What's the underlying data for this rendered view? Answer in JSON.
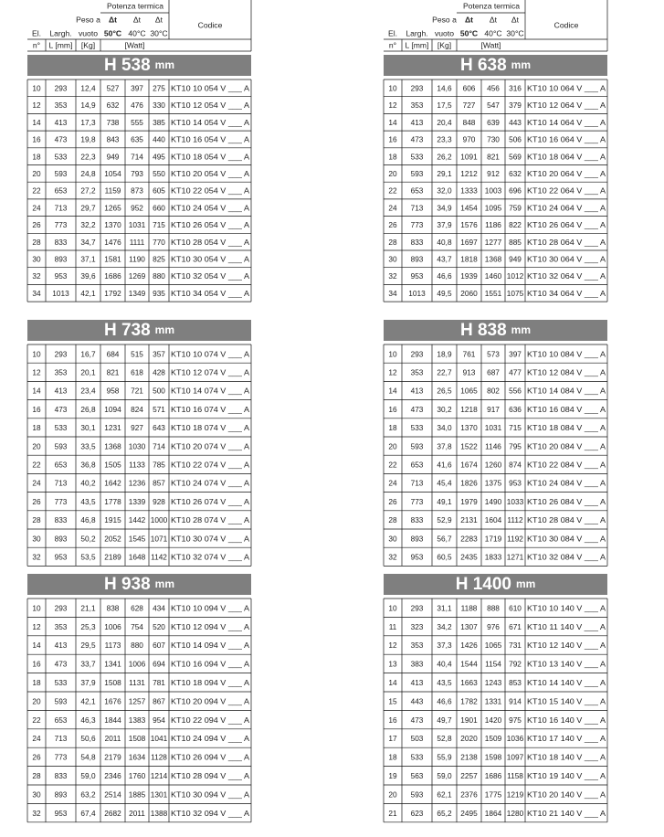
{
  "header": {
    "group": "Potenza termica",
    "columns": [
      [
        "El."
      ],
      [
        "Largh."
      ],
      [
        "Peso a",
        "vuoto"
      ],
      [
        "Δt",
        "50°C"
      ],
      [
        "Δt",
        "40°C"
      ],
      [
        "Δt",
        "30°C"
      ],
      [
        "Codice"
      ]
    ],
    "units": [
      "n°",
      "L [mm]",
      "[Kg]",
      "[Watt]"
    ]
  },
  "sections": [
    {
      "title": "H 538",
      "unit": "mm",
      "rows": [
        [
          "10",
          "293",
          "12,4",
          "527",
          "397",
          "275",
          "KT10 10 054 V ___ A"
        ],
        [
          "12",
          "353",
          "14,9",
          "632",
          "476",
          "330",
          "KT10 12 054 V ___ A"
        ],
        [
          "14",
          "413",
          "17,3",
          "738",
          "555",
          "385",
          "KT10 14 054 V ___ A"
        ],
        [
          "16",
          "473",
          "19,8",
          "843",
          "635",
          "440",
          "KT10 16 054 V ___ A"
        ],
        [
          "18",
          "533",
          "22,3",
          "949",
          "714",
          "495",
          "KT10 18 054 V ___ A"
        ],
        [
          "20",
          "593",
          "24,8",
          "1054",
          "793",
          "550",
          "KT10 20 054 V ___ A"
        ],
        [
          "22",
          "653",
          "27,2",
          "1159",
          "873",
          "605",
          "KT10 22 054 V ___ A"
        ],
        [
          "24",
          "713",
          "29,7",
          "1265",
          "952",
          "660",
          "KT10 24 054 V ___ A"
        ],
        [
          "26",
          "773",
          "32,2",
          "1370",
          "1031",
          "715",
          "KT10 26 054 V ___ A"
        ],
        [
          "28",
          "833",
          "34,7",
          "1476",
          "1111",
          "770",
          "KT10 28 054 V ___ A"
        ],
        [
          "30",
          "893",
          "37,1",
          "1581",
          "1190",
          "825",
          "KT10 30 054 V ___ A"
        ],
        [
          "32",
          "953",
          "39,6",
          "1686",
          "1269",
          "880",
          "KT10 32 054 V ___ A"
        ],
        [
          "34",
          "1013",
          "42,1",
          "1792",
          "1349",
          "935",
          "KT10 34 054 V ___ A"
        ]
      ]
    },
    {
      "title": "H 638",
      "unit": "mm",
      "rows": [
        [
          "10",
          "293",
          "14,6",
          "606",
          "456",
          "316",
          "KT10 10 064 V ___ A"
        ],
        [
          "12",
          "353",
          "17,5",
          "727",
          "547",
          "379",
          "KT10 12 064 V ___ A"
        ],
        [
          "14",
          "413",
          "20,4",
          "848",
          "639",
          "443",
          "KT10 14 064 V ___ A"
        ],
        [
          "16",
          "473",
          "23,3",
          "970",
          "730",
          "506",
          "KT10 16 064 V ___ A"
        ],
        [
          "18",
          "533",
          "26,2",
          "1091",
          "821",
          "569",
          "KT10 18 064 V ___ A"
        ],
        [
          "20",
          "593",
          "29,1",
          "1212",
          "912",
          "632",
          "KT10 20 064 V ___ A"
        ],
        [
          "22",
          "653",
          "32,0",
          "1333",
          "1003",
          "696",
          "KT10 22 064 V ___ A"
        ],
        [
          "24",
          "713",
          "34,9",
          "1454",
          "1095",
          "759",
          "KT10 24 064 V ___ A"
        ],
        [
          "26",
          "773",
          "37,9",
          "1576",
          "1186",
          "822",
          "KT10 26 064 V ___ A"
        ],
        [
          "28",
          "833",
          "40,8",
          "1697",
          "1277",
          "885",
          "KT10 28 064 V ___ A"
        ],
        [
          "30",
          "893",
          "43,7",
          "1818",
          "1368",
          "949",
          "KT10 30 064 V ___ A"
        ],
        [
          "32",
          "953",
          "46,6",
          "1939",
          "1460",
          "1012",
          "KT10 32 064 V ___ A"
        ],
        [
          "34",
          "1013",
          "49,5",
          "2060",
          "1551",
          "1075",
          "KT10 34 064 V ___ A"
        ]
      ]
    },
    {
      "title": "H 738",
      "unit": "mm",
      "rows": [
        [
          "10",
          "293",
          "16,7",
          "684",
          "515",
          "357",
          "KT10 10 074 V ___ A"
        ],
        [
          "12",
          "353",
          "20,1",
          "821",
          "618",
          "428",
          "KT10 12 074 V ___ A"
        ],
        [
          "14",
          "413",
          "23,4",
          "958",
          "721",
          "500",
          "KT10 14 074 V ___ A"
        ],
        [
          "16",
          "473",
          "26,8",
          "1094",
          "824",
          "571",
          "KT10 16 074 V ___ A"
        ],
        [
          "18",
          "533",
          "30,1",
          "1231",
          "927",
          "643",
          "KT10 18 074 V ___ A"
        ],
        [
          "20",
          "593",
          "33,5",
          "1368",
          "1030",
          "714",
          "KT10 20 074 V ___ A"
        ],
        [
          "22",
          "653",
          "36,8",
          "1505",
          "1133",
          "785",
          "KT10 22 074 V ___ A"
        ],
        [
          "24",
          "713",
          "40,2",
          "1642",
          "1236",
          "857",
          "KT10 24 074 V ___ A"
        ],
        [
          "26",
          "773",
          "43,5",
          "1778",
          "1339",
          "928",
          "KT10 26 074 V ___ A"
        ],
        [
          "28",
          "833",
          "46,8",
          "1915",
          "1442",
          "1000",
          "KT10 28 074 V ___ A"
        ],
        [
          "30",
          "893",
          "50,2",
          "2052",
          "1545",
          "1071",
          "KT10 30 074 V ___ A"
        ],
        [
          "32",
          "953",
          "53,5",
          "2189",
          "1648",
          "1142",
          "KT10 32 074 V ___ A"
        ]
      ]
    },
    {
      "title": "H 838",
      "unit": "mm",
      "rows": [
        [
          "10",
          "293",
          "18,9",
          "761",
          "573",
          "397",
          "KT10 10 084 V ___ A"
        ],
        [
          "12",
          "353",
          "22,7",
          "913",
          "687",
          "477",
          "KT10 12 084 V ___ A"
        ],
        [
          "14",
          "413",
          "26,5",
          "1065",
          "802",
          "556",
          "KT10 14 084 V ___ A"
        ],
        [
          "16",
          "473",
          "30,2",
          "1218",
          "917",
          "636",
          "KT10 16 084 V ___ A"
        ],
        [
          "18",
          "533",
          "34,0",
          "1370",
          "1031",
          "715",
          "KT10 18 084 V ___ A"
        ],
        [
          "20",
          "593",
          "37,8",
          "1522",
          "1146",
          "795",
          "KT10 20 084 V ___ A"
        ],
        [
          "22",
          "653",
          "41,6",
          "1674",
          "1260",
          "874",
          "KT10 22 084 V ___ A"
        ],
        [
          "24",
          "713",
          "45,4",
          "1826",
          "1375",
          "953",
          "KT10 24 084 V ___ A"
        ],
        [
          "26",
          "773",
          "49,1",
          "1979",
          "1490",
          "1033",
          "KT10 26 084 V ___ A"
        ],
        [
          "28",
          "833",
          "52,9",
          "2131",
          "1604",
          "1112",
          "KT10 28 084 V ___ A"
        ],
        [
          "30",
          "893",
          "56,7",
          "2283",
          "1719",
          "1192",
          "KT10 30 084 V ___ A"
        ],
        [
          "32",
          "953",
          "60,5",
          "2435",
          "1833",
          "1271",
          "KT10 32 084 V ___ A"
        ]
      ]
    },
    {
      "title": "H 938",
      "unit": "mm",
      "rows": [
        [
          "10",
          "293",
          "21,1",
          "838",
          "628",
          "434",
          "KT10 10 094 V ___ A"
        ],
        [
          "12",
          "353",
          "25,3",
          "1006",
          "754",
          "520",
          "KT10 12 094 V ___ A"
        ],
        [
          "14",
          "413",
          "29,5",
          "1173",
          "880",
          "607",
          "KT10 14 094 V ___ A"
        ],
        [
          "16",
          "473",
          "33,7",
          "1341",
          "1006",
          "694",
          "KT10 16 094 V ___ A"
        ],
        [
          "18",
          "533",
          "37,9",
          "1508",
          "1131",
          "781",
          "KT10 18 094 V ___ A"
        ],
        [
          "20",
          "593",
          "42,1",
          "1676",
          "1257",
          "867",
          "KT10 20 094 V ___ A"
        ],
        [
          "22",
          "653",
          "46,3",
          "1844",
          "1383",
          "954",
          "KT10 22 094 V ___ A"
        ],
        [
          "24",
          "713",
          "50,6",
          "2011",
          "1508",
          "1041",
          "KT10 24 094 V ___ A"
        ],
        [
          "26",
          "773",
          "54,8",
          "2179",
          "1634",
          "1128",
          "KT10 26 094 V ___ A"
        ],
        [
          "28",
          "833",
          "59,0",
          "2346",
          "1760",
          "1214",
          "KT10 28 094 V ___ A"
        ],
        [
          "30",
          "893",
          "63,2",
          "2514",
          "1885",
          "1301",
          "KT10 30 094 V ___ A"
        ],
        [
          "32",
          "953",
          "67,4",
          "2682",
          "2011",
          "1388",
          "KT10 32 094 V ___ A"
        ]
      ]
    },
    {
      "title": "H 1400",
      "unit": "mm",
      "rows": [
        [
          "10",
          "293",
          "31,1",
          "1188",
          "888",
          "610",
          "KT10 10 140 V ___ A"
        ],
        [
          "11",
          "323",
          "34,2",
          "1307",
          "976",
          "671",
          "KT10 11 140 V ___ A"
        ],
        [
          "12",
          "353",
          "37,3",
          "1426",
          "1065",
          "731",
          "KT10 12 140 V ___ A"
        ],
        [
          "13",
          "383",
          "40,4",
          "1544",
          "1154",
          "792",
          "KT10 13 140 V ___ A"
        ],
        [
          "14",
          "413",
          "43,5",
          "1663",
          "1243",
          "853",
          "KT10 14 140 V ___ A"
        ],
        [
          "15",
          "443",
          "46,6",
          "1782",
          "1331",
          "914",
          "KT10 15 140 V ___ A"
        ],
        [
          "16",
          "473",
          "49,7",
          "1901",
          "1420",
          "975",
          "KT10 16 140 V ___ A"
        ],
        [
          "17",
          "503",
          "52,8",
          "2020",
          "1509",
          "1036",
          "KT10 17 140 V ___ A"
        ],
        [
          "18",
          "533",
          "55,9",
          "2138",
          "1598",
          "1097",
          "KT10 18 140 V ___ A"
        ],
        [
          "19",
          "563",
          "59,0",
          "2257",
          "1686",
          "1158",
          "KT10 19 140 V ___ A"
        ],
        [
          "20",
          "593",
          "62,1",
          "2376",
          "1775",
          "1219",
          "KT10 20 140 V ___ A"
        ],
        [
          "21",
          "623",
          "65,2",
          "2495",
          "1864",
          "1280",
          "KT10 21 140 V ___ A"
        ]
      ]
    }
  ]
}
